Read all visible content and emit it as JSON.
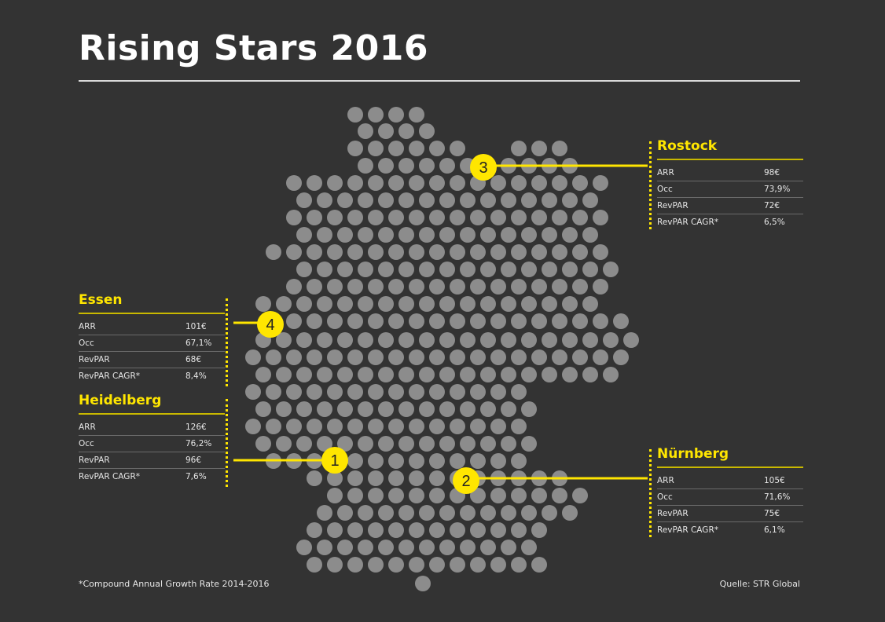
{
  "title": "Rising Stars 2016",
  "colors": {
    "background": "#333333",
    "dot": "#8c8c8c",
    "accent": "#ffe600",
    "text": "#e6e6e6"
  },
  "markers": [
    {
      "number": "1",
      "city": "Heidelberg"
    },
    {
      "number": "2",
      "city": "Nürnberg"
    },
    {
      "number": "3",
      "city": "Rostock"
    },
    {
      "number": "4",
      "city": "Essen"
    }
  ],
  "panels": {
    "rostock": {
      "city": "Rostock",
      "rows": [
        {
          "label": "ARR",
          "value": "98€"
        },
        {
          "label": "Occ",
          "value": "73,9%"
        },
        {
          "label": "RevPAR",
          "value": "72€"
        },
        {
          "label": "RevPAR CAGR*",
          "value": "6,5%"
        }
      ]
    },
    "essen": {
      "city": "Essen",
      "rows": [
        {
          "label": "ARR",
          "value": "101€"
        },
        {
          "label": "Occ",
          "value": "67,1%"
        },
        {
          "label": "RevPAR",
          "value": "68€"
        },
        {
          "label": "RevPAR CAGR*",
          "value": "8,4%"
        }
      ]
    },
    "heidelberg": {
      "city": "Heidelberg",
      "rows": [
        {
          "label": "ARR",
          "value": "126€"
        },
        {
          "label": "Occ",
          "value": "76,2%"
        },
        {
          "label": "RevPAR",
          "value": "96€"
        },
        {
          "label": "RevPAR CAGR*",
          "value": "7,6%"
        }
      ]
    },
    "nuernberg": {
      "city": "Nürnberg",
      "rows": [
        {
          "label": "ARR",
          "value": "105€"
        },
        {
          "label": "Occ",
          "value": "71,6%"
        },
        {
          "label": "RevPAR",
          "value": "75€"
        },
        {
          "label": "RevPAR CAGR*",
          "value": "6,1%"
        }
      ]
    }
  },
  "footnote": "*Compound Annual Growth Rate 2014-2016",
  "source": "Quelle: STR Global"
}
